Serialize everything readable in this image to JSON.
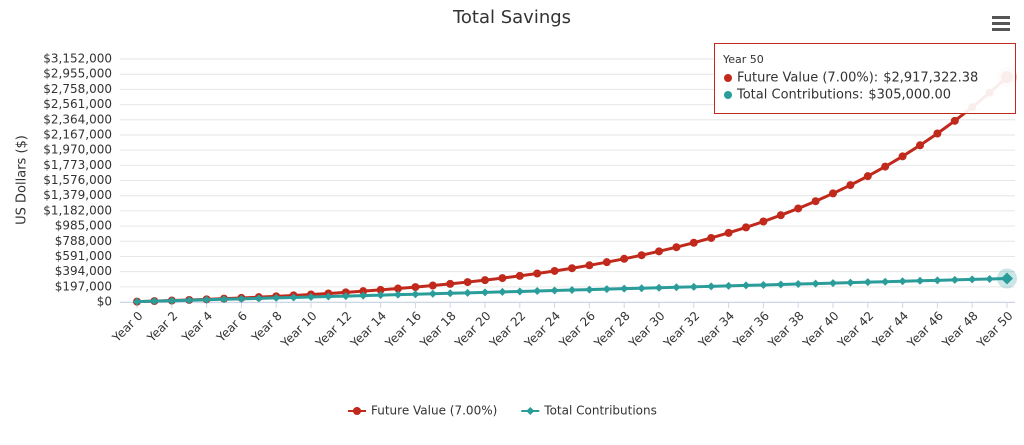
{
  "chart_data": {
    "type": "line",
    "title": "Total Savings",
    "y_label": "US Dollars ($)",
    "categories": [
      "Year 0",
      null,
      "Year 2",
      null,
      "Year 4",
      null,
      "Year 6",
      null,
      "Year 8",
      null,
      "Year 10",
      null,
      "Year 12",
      null,
      "Year 14",
      null,
      "Year 16",
      null,
      "Year 18",
      null,
      "Year 20",
      null,
      "Year 22",
      null,
      "Year 24",
      null,
      "Year 26",
      null,
      "Year 28",
      null,
      "Year 30",
      null,
      "Year 32",
      null,
      "Year 34",
      null,
      "Year 36",
      null,
      "Year 38",
      null,
      "Year 40",
      null,
      "Year 42",
      null,
      "Year 44",
      null,
      "Year 46",
      null,
      "Year 48",
      null,
      "Year 50"
    ],
    "series": [
      {
        "name": "Future Value (7.00%)",
        "color": "#c0291b",
        "marker": "circle",
        "values": [
          5000,
          11674,
          18775,
          26388,
          34561,
          43310,
          52701,
          62771,
          73563,
          85144,
          97559,
          110871,
          125145,
          140455,
          156864,
          174465,
          193338,
          213577,
          235273,
          258544,
          283492,
          310245,
          338932,
          369698,
          402681,
          438055,
          475986,
          516656,
          560267,
          607030,
          657174,
          710945,
          768602,
          830427,
          896723,
          967811,
          1044039,
          1125773,
          1213426,
          1307410,
          1408192,
          1516258,
          1632139,
          1756394,
          1889628,
          2032500,
          2185698,
          2349972,
          2526121,
          2715014,
          2917322.38
        ]
      },
      {
        "name": "Total Contributions",
        "color": "#2a9d9a",
        "marker": "diamond",
        "values": [
          5000,
          11000,
          17000,
          23000,
          29000,
          35000,
          41000,
          47000,
          53000,
          59000,
          65000,
          71000,
          77000,
          83000,
          89000,
          95000,
          101000,
          107000,
          113000,
          119000,
          125000,
          131000,
          137000,
          143000,
          149000,
          155000,
          161000,
          167000,
          173000,
          179000,
          185000,
          191000,
          197000,
          203000,
          209000,
          215000,
          221000,
          227000,
          233000,
          239000,
          245000,
          251000,
          257000,
          263000,
          269000,
          275000,
          281000,
          287000,
          293000,
          299000,
          305000
        ]
      }
    ],
    "ylim": [
      0,
      3152000
    ],
    "yticks": [
      {
        "value": 0,
        "label": "$0"
      },
      {
        "value": 197000,
        "label": "$197,000"
      },
      {
        "value": 394000,
        "label": "$394,000"
      },
      {
        "value": 591000,
        "label": "$591,000"
      },
      {
        "value": 788000,
        "label": "$788,000"
      },
      {
        "value": 985000,
        "label": "$985,000"
      },
      {
        "value": 1182000,
        "label": "$1,182,000"
      },
      {
        "value": 1379000,
        "label": "$1,379,000"
      },
      {
        "value": 1576000,
        "label": "$1,576,000"
      },
      {
        "value": 1773000,
        "label": "$1,773,000"
      },
      {
        "value": 1970000,
        "label": "$1,970,000"
      },
      {
        "value": 2167000,
        "label": "$2,167,000"
      },
      {
        "value": 2364000,
        "label": "$2,364,000"
      },
      {
        "value": 2561000,
        "label": "$2,561,000"
      },
      {
        "value": 2758000,
        "label": "$2,758,000"
      },
      {
        "value": 2955000,
        "label": "$2,955,000"
      },
      {
        "value": 3152000,
        "label": "$3,152,000"
      }
    ],
    "grid": true,
    "legend": "bottom",
    "tooltip": {
      "index": 50,
      "items": [
        {
          "label": "Future Value (7.00%):",
          "value_label": "$2,917,322.38"
        },
        {
          "label": "Total Contributions:",
          "value_label": "$305,000.00"
        }
      ]
    }
  }
}
